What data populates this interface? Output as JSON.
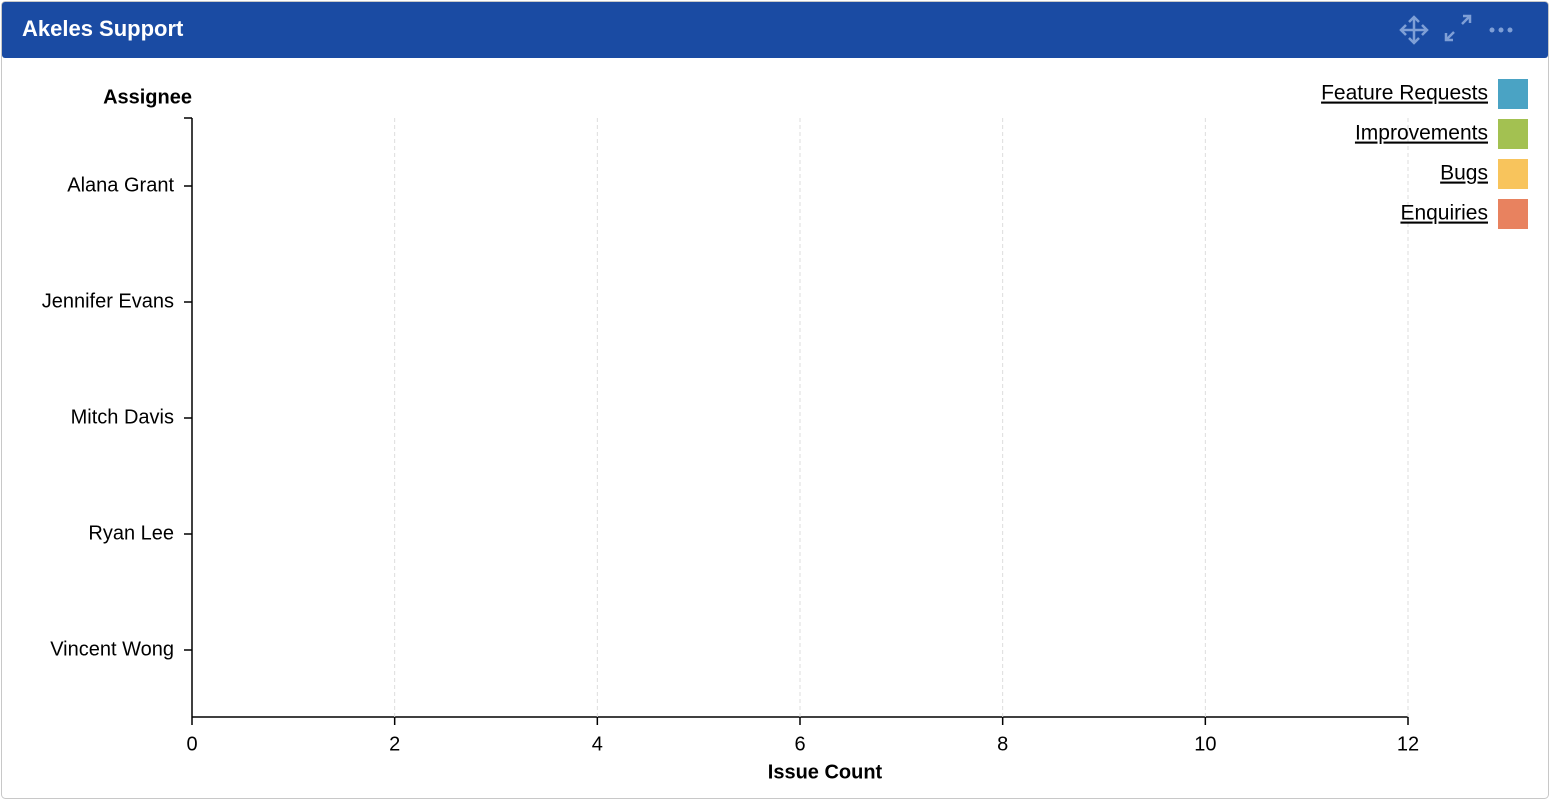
{
  "header": {
    "title": "Akeles Support"
  },
  "chart_data": {
    "type": "bar",
    "orientation": "horizontal",
    "stacked": true,
    "ylabel": "Assignee",
    "xlabel": "Issue Count",
    "categories": [
      "Alana Grant",
      "Jennifer Evans",
      "Mitch Davis",
      "Ryan Lee",
      "Vincent Wong"
    ],
    "series": [
      {
        "name": "Feature Requests",
        "color": "#4aa3c4",
        "values": [
          0,
          0,
          0,
          0,
          0
        ]
      },
      {
        "name": "Improvements",
        "color": "#a3c151",
        "values": [
          0,
          0,
          0,
          0,
          0
        ]
      },
      {
        "name": "Bugs",
        "color": "#f8c45c",
        "values": [
          0,
          0,
          0,
          0,
          0
        ]
      },
      {
        "name": "Enquiries",
        "color": "#e8825f",
        "values": [
          0,
          0,
          0,
          0,
          0
        ]
      }
    ],
    "xlim": [
      0,
      12
    ],
    "xticks": [
      0,
      2,
      4,
      6,
      8,
      10,
      12
    ],
    "grid": true,
    "legend": "top-right"
  }
}
